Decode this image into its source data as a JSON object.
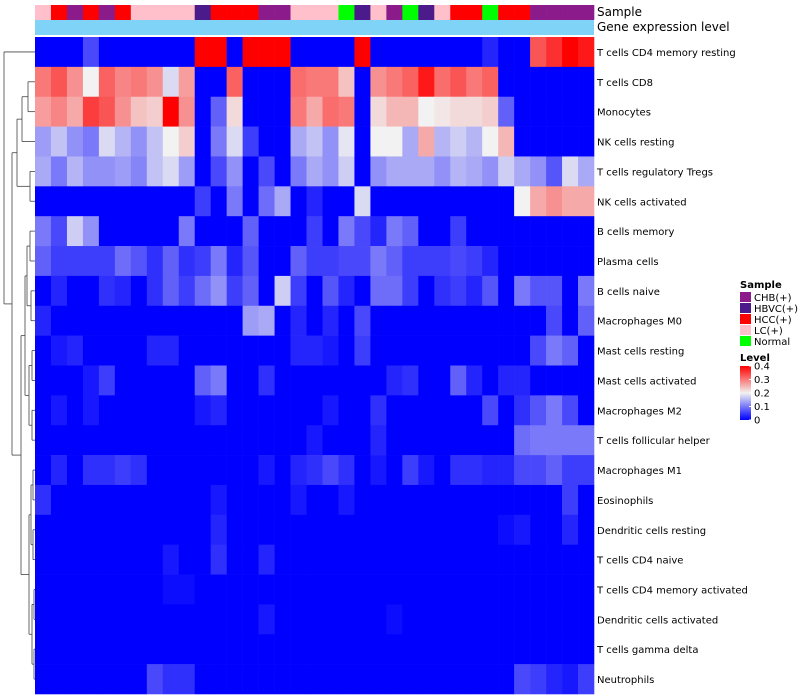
{
  "chart_data": {
    "type": "heatmap",
    "annotation_labels": {
      "sample": "Sample",
      "expression": "Gene expression level"
    },
    "sample_categories": [
      "CHB(+)",
      "HBVC(+)",
      "HCC(+)",
      "LC(+)",
      "Normal"
    ],
    "sample_colors": {
      "CHB(+)": "#8B1A8B",
      "HBVC(+)": "#4B1A8B",
      "HCC(+)": "#FF0000",
      "LC(+)": "#FFC0CB",
      "Normal": "#00FF00"
    },
    "expression_bar_color": "#7FD3F7",
    "column_samples": [
      "LC(+)",
      "HCC(+)",
      "CHB(+)",
      "HCC(+)",
      "CHB(+)",
      "HCC(+)",
      "LC(+)",
      "LC(+)",
      "LC(+)",
      "LC(+)",
      "HBVC(+)",
      "HCC(+)",
      "HCC(+)",
      "HCC(+)",
      "CHB(+)",
      "CHB(+)",
      "LC(+)",
      "LC(+)",
      "LC(+)",
      "Normal",
      "HBVC(+)",
      "LC(+)",
      "CHB(+)",
      "Normal",
      "HBVC(+)",
      "LC(+)",
      "HCC(+)",
      "HCC(+)",
      "Normal",
      "HCC(+)",
      "HCC(+)",
      "CHB(+)",
      "CHB(+)",
      "CHB(+)",
      "CHB(+)"
    ],
    "rows": [
      "T cells CD4 memory resting",
      "T cells CD8",
      "Monocytes",
      "NK cells resting",
      "T cells regulatory  Tregs",
      "NK cells activated",
      "B cells memory",
      "Plasma cells",
      "B cells naive",
      "Macrophages M0",
      "Mast cells resting",
      "Mast cells activated",
      "Macrophages M2",
      "T cells follicular helper",
      "Macrophages M1",
      "Eosinophils",
      "Dendritic cells resting",
      "T cells CD4 naive",
      "T cells CD4 memory activated",
      "Dendritic cells activated",
      "T cells gamma delta",
      "Neutrophils"
    ],
    "values": [
      [
        0,
        0,
        0,
        0.06,
        0,
        0,
        0,
        0,
        0,
        0,
        0.42,
        0.42,
        0,
        0.42,
        0.42,
        0.42,
        0,
        0,
        0,
        0,
        0.42,
        0,
        0,
        0,
        0,
        0,
        0,
        0,
        0.03,
        0,
        0,
        0.33,
        0.36,
        0.42,
        0.38
      ],
      [
        0.3,
        0.33,
        0.28,
        0.2,
        0.32,
        0.29,
        0.3,
        0.28,
        0.18,
        0.27,
        0,
        0,
        0.32,
        0,
        0,
        0,
        0.31,
        0.3,
        0.3,
        0.24,
        0,
        0.28,
        0.3,
        0.32,
        0.38,
        0.31,
        0.33,
        0.3,
        0.32,
        0,
        0,
        0,
        0,
        0,
        0
      ],
      [
        0.27,
        0.29,
        0.26,
        0.35,
        0.33,
        0.28,
        0.24,
        0.23,
        0.42,
        0.28,
        0,
        0.08,
        0.22,
        0,
        0,
        0,
        0.3,
        0.26,
        0.31,
        0.3,
        0,
        0.22,
        0.25,
        0.25,
        0.2,
        0.21,
        0.22,
        0.22,
        0.23,
        0.08,
        0,
        0,
        0,
        0,
        0
      ],
      [
        0.13,
        0.16,
        0.12,
        0.1,
        0.18,
        0.15,
        0.12,
        0.16,
        0.2,
        0.23,
        0,
        0.1,
        0.18,
        0.05,
        0,
        0,
        0.14,
        0.16,
        0.12,
        0.19,
        0,
        0.2,
        0.2,
        0.14,
        0.26,
        0.15,
        0.17,
        0.15,
        0.2,
        0.25,
        0,
        0,
        0,
        0,
        0
      ],
      [
        0.14,
        0.1,
        0.15,
        0.12,
        0.12,
        0.13,
        0.11,
        0.16,
        0.18,
        0.13,
        0,
        0.06,
        0.12,
        0,
        0.06,
        0,
        0.1,
        0.14,
        0.12,
        0.17,
        0,
        0.12,
        0.14,
        0.14,
        0.14,
        0.12,
        0.15,
        0.14,
        0.12,
        0.17,
        0.14,
        0.12,
        0.07,
        0.18,
        0.14
      ],
      [
        0,
        0,
        0,
        0,
        0,
        0,
        0,
        0,
        0,
        0,
        0.05,
        0,
        0.1,
        0,
        0.09,
        0.14,
        0,
        0.03,
        0,
        0,
        0.18,
        0,
        0,
        0,
        0,
        0,
        0,
        0,
        0,
        0,
        0.2,
        0.26,
        0.28,
        0.26,
        0.26
      ],
      [
        0.1,
        0.06,
        0.17,
        0.12,
        0,
        0,
        0,
        0,
        0,
        0.1,
        0,
        0,
        0,
        0.08,
        0,
        0,
        0,
        0.05,
        0,
        0.1,
        0.06,
        0.03,
        0.1,
        0.08,
        0,
        0,
        0.05,
        0,
        0,
        0,
        0,
        0,
        0,
        0,
        0
      ],
      [
        0.08,
        0.05,
        0.05,
        0.05,
        0.05,
        0.09,
        0.07,
        0.04,
        0.08,
        0.04,
        0.05,
        0.1,
        0.03,
        0.07,
        0,
        0,
        0.08,
        0.05,
        0.05,
        0.06,
        0.06,
        0.1,
        0.08,
        0.05,
        0.05,
        0.05,
        0.06,
        0.05,
        0.03,
        0,
        0,
        0,
        0,
        0,
        0
      ],
      [
        0,
        0.03,
        0,
        0,
        0.04,
        0.03,
        0,
        0.04,
        0.08,
        0.05,
        0.09,
        0.12,
        0.05,
        0.08,
        0,
        0.17,
        0.05,
        0,
        0.07,
        0.03,
        0,
        0.09,
        0.09,
        0.05,
        0,
        0.04,
        0.05,
        0.03,
        0.07,
        0,
        0.1,
        0.07,
        0.07,
        0,
        0.1
      ],
      [
        0.03,
        0,
        0,
        0,
        0,
        0,
        0,
        0,
        0,
        0,
        0,
        0,
        0,
        0.13,
        0.14,
        0,
        0.03,
        0,
        0.03,
        0,
        0.06,
        0,
        0,
        0,
        0,
        0,
        0,
        0,
        0,
        0,
        0,
        0,
        0.06,
        0,
        0.08
      ],
      [
        0,
        0.02,
        0.03,
        0,
        0,
        0,
        0,
        0.03,
        0.03,
        0,
        0,
        0,
        0,
        0,
        0,
        0,
        0.03,
        0.03,
        0.02,
        0,
        0.05,
        0,
        0,
        0,
        0,
        0,
        0,
        0,
        0,
        0,
        0,
        0.06,
        0.1,
        0.08,
        0
      ],
      [
        0,
        0,
        0,
        0.02,
        0.05,
        0,
        0,
        0,
        0,
        0,
        0.08,
        0.1,
        0,
        0,
        0.04,
        0,
        0,
        0,
        0,
        0,
        0,
        0,
        0.03,
        0.04,
        0,
        0,
        0.08,
        0.03,
        0,
        0.03,
        0.03,
        0,
        0,
        0,
        0
      ],
      [
        0,
        0.02,
        0,
        0.02,
        0,
        0,
        0,
        0,
        0,
        0,
        0.02,
        0.03,
        0,
        0,
        0,
        0,
        0,
        0,
        0.02,
        0,
        0,
        0.04,
        0,
        0,
        0,
        0,
        0,
        0,
        0.06,
        0,
        0.04,
        0.07,
        0.1,
        0.06,
        0
      ],
      [
        0,
        0,
        0,
        0,
        0,
        0,
        0,
        0,
        0,
        0,
        0,
        0,
        0,
        0,
        0,
        0,
        0,
        0.02,
        0,
        0,
        0,
        0.03,
        0,
        0,
        0,
        0,
        0,
        0,
        0,
        0,
        0.09,
        0.1,
        0.1,
        0.1,
        0.1
      ],
      [
        0,
        0.03,
        0,
        0.04,
        0.04,
        0.05,
        0.04,
        0,
        0,
        0,
        0,
        0,
        0,
        0,
        0.02,
        0,
        0.03,
        0.04,
        0.06,
        0.04,
        0,
        0.02,
        0,
        0.05,
        0.02,
        0,
        0.04,
        0.04,
        0.03,
        0.03,
        0.06,
        0.06,
        0.08,
        0.05,
        0.05
      ],
      [
        0.04,
        0,
        0,
        0,
        0,
        0,
        0,
        0,
        0,
        0,
        0,
        0.02,
        0,
        0,
        0,
        0,
        0.02,
        0,
        0,
        0.02,
        0,
        0,
        0,
        0,
        0,
        0,
        0,
        0,
        0,
        0,
        0,
        0,
        0,
        0.05,
        0
      ],
      [
        0,
        0,
        0,
        0,
        0,
        0,
        0,
        0,
        0,
        0,
        0,
        0.03,
        0,
        0,
        0,
        0,
        0,
        0,
        0,
        0,
        0,
        0,
        0,
        0,
        0,
        0,
        0,
        0,
        0,
        0.01,
        0.02,
        0,
        0,
        0.03,
        0
      ],
      [
        0,
        0,
        0,
        0,
        0,
        0,
        0,
        0,
        0.02,
        0,
        0,
        0.04,
        0,
        0,
        0.03,
        0,
        0,
        0,
        0,
        0,
        0,
        0,
        0,
        0,
        0,
        0,
        0,
        0,
        0,
        0,
        0,
        0,
        0,
        0,
        0
      ],
      [
        0,
        0,
        0,
        0,
        0,
        0,
        0,
        0,
        0.01,
        0.01,
        0,
        0,
        0,
        0,
        0,
        0,
        0,
        0,
        0,
        0,
        0,
        0,
        0,
        0,
        0,
        0,
        0,
        0,
        0,
        0,
        0,
        0,
        0,
        0,
        0
      ],
      [
        0,
        0,
        0,
        0,
        0,
        0,
        0,
        0,
        0,
        0,
        0,
        0,
        0,
        0,
        0.02,
        0,
        0,
        0,
        0,
        0,
        0,
        0,
        0.01,
        0,
        0,
        0,
        0,
        0,
        0,
        0,
        0,
        0,
        0,
        0,
        0
      ],
      [
        0,
        0,
        0,
        0,
        0,
        0,
        0,
        0,
        0,
        0,
        0,
        0,
        0,
        0,
        0,
        0,
        0,
        0,
        0,
        0,
        0,
        0,
        0,
        0,
        0,
        0,
        0,
        0,
        0,
        0,
        0,
        0,
        0,
        0,
        0
      ],
      [
        0,
        0,
        0,
        0,
        0,
        0,
        0,
        0.06,
        0.04,
        0.04,
        0,
        0,
        0,
        0,
        0,
        0,
        0,
        0,
        0,
        0,
        0,
        0,
        0,
        0,
        0,
        0,
        0,
        0,
        0,
        0,
        0.06,
        0.05,
        0.03,
        0.02,
        0.05
      ]
    ],
    "color_scale": {
      "stops": [
        0,
        0.2,
        0.4
      ],
      "colors": [
        "#0000FF",
        "#F2F2F2",
        "#FF0000"
      ]
    },
    "legend": {
      "sample_title": "Sample",
      "level_title": "Level",
      "level_ticks": [
        "0.4",
        "0.3",
        "0.2",
        "0.1",
        "0"
      ],
      "level_tick_values": [
        0.4,
        0.3,
        0.2,
        0.1,
        0
      ]
    }
  }
}
